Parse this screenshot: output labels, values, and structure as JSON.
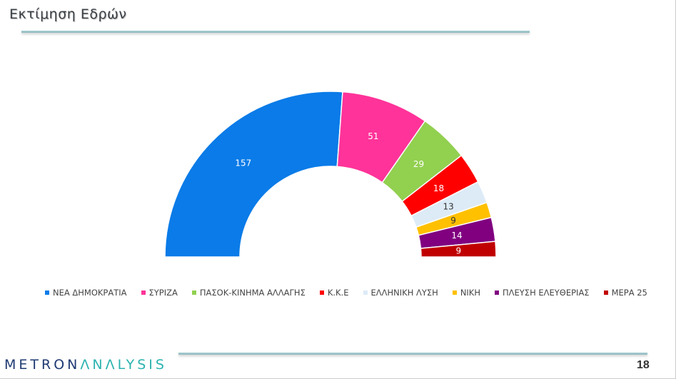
{
  "header": {
    "title": "Εκτίμηση Εδρών"
  },
  "chart_data": {
    "type": "pie",
    "subtype": "half-donut",
    "total": 300,
    "series": [
      {
        "name": "ΝΕΑ  ΔΗΜΟΚΡΑΤΙΑ",
        "value": 157,
        "color": "#0A7BE8",
        "label_color": "#ffffff"
      },
      {
        "name": "ΣΥΡΙΖΑ",
        "value": 51,
        "color": "#FF3399",
        "label_color": "#ffffff"
      },
      {
        "name": "ΠΑΣΟΚ-ΚΙΝΗΜΑ  ΑΛΛΑΓΗΣ",
        "value": 29,
        "color": "#92D050",
        "label_color": "#ffffff"
      },
      {
        "name": "Κ.Κ.Ε",
        "value": 18,
        "color": "#FF0000",
        "label_color": "#ffffff"
      },
      {
        "name": "ΕΛΛΗΝΙΚΗ  ΛΥΣΗ",
        "value": 13,
        "color": "#DDEBF7",
        "label_color": "#333333"
      },
      {
        "name": "ΝΙΚΗ",
        "value": 9,
        "color": "#FFC000",
        "label_color": "#333333"
      },
      {
        "name": "ΠΛΕΥΣΗ ΕΛΕΥΘΕΡΙΑΣ",
        "value": 14,
        "color": "#800080",
        "label_color": "#ffffff"
      },
      {
        "name": "ΜΕΡΑ 25",
        "value": 9,
        "color": "#C00000",
        "label_color": "#ffffff"
      }
    ],
    "legend_position": "bottom"
  },
  "footer": {
    "logo_part1": "METRON",
    "logo_part2": "ΛNΛLYSIS",
    "page_number": "18"
  }
}
